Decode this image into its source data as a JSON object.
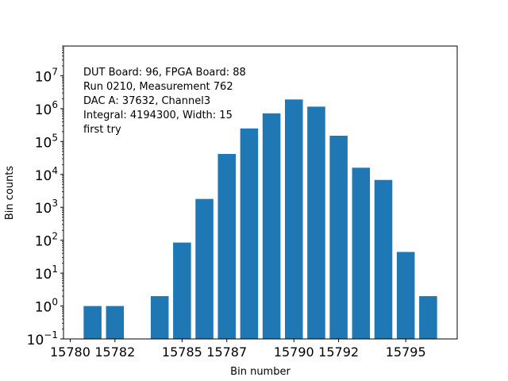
{
  "chart_data": {
    "type": "bar",
    "title": "",
    "xlabel": "Bin number",
    "ylabel": "Bin counts",
    "yscale": "log",
    "xlim": [
      15779.7,
      15797.3
    ],
    "ylim": [
      0.1,
      80000000
    ],
    "grid": false,
    "color": "#1f77b4",
    "x_ticks": [
      15780,
      15782,
      15785,
      15787,
      15790,
      15792,
      15795
    ],
    "y_ticks": [
      {
        "value": 0.1,
        "mantissa": "10",
        "exp": "−1"
      },
      {
        "value": 1,
        "mantissa": "10",
        "exp": "0"
      },
      {
        "value": 10,
        "mantissa": "10",
        "exp": "1"
      },
      {
        "value": 100,
        "mantissa": "10",
        "exp": "2"
      },
      {
        "value": 1000,
        "mantissa": "10",
        "exp": "3"
      },
      {
        "value": 10000,
        "mantissa": "10",
        "exp": "4"
      },
      {
        "value": 100000,
        "mantissa": "10",
        "exp": "5"
      },
      {
        "value": 1000000,
        "mantissa": "10",
        "exp": "6"
      },
      {
        "value": 10000000,
        "mantissa": "10",
        "exp": "7"
      }
    ],
    "x": [
      15781,
      15782,
      15784,
      15785,
      15786,
      15787,
      15788,
      15789,
      15790,
      15791,
      15792,
      15793,
      15794,
      15795,
      15796
    ],
    "values": [
      1,
      1,
      2,
      85,
      1800,
      42000,
      250000,
      720000,
      1900000,
      1150000,
      150000,
      16000,
      6800,
      44,
      2
    ],
    "annotation": [
      "DUT Board: 96, FPGA Board: 88",
      "Run 0210, Measurement 762",
      "DAC A: 37632, Channel3",
      "Integral: 4194300, Width: 15",
      "first try"
    ]
  }
}
